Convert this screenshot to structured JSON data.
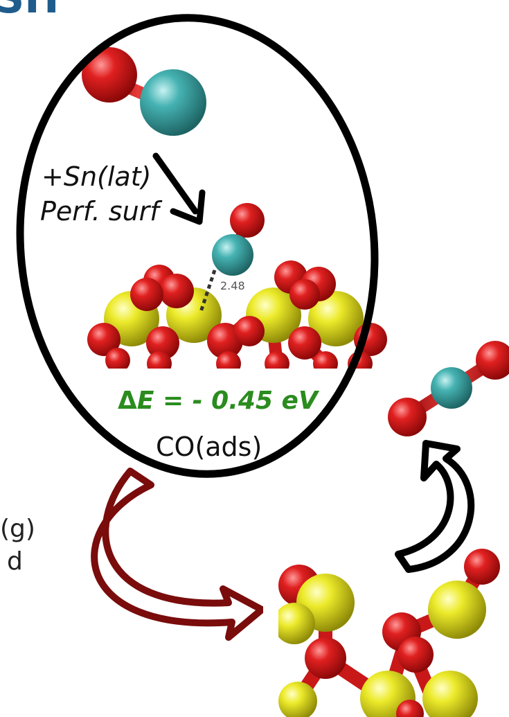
{
  "header": {
    "title_fragment": "SH"
  },
  "labels": {
    "reaction_line1": "+Sn(lat)",
    "reaction_line2": "Perf. surf",
    "bond_distance": "2.48",
    "energy_symbol": "Δ",
    "energy_E": "E",
    "energy_value": " = - 0.45 eV",
    "state": "CO(ads)",
    "side_text_1": "(g)",
    "side_text_2": "d"
  },
  "colors": {
    "oxygen": "#d21a1a",
    "carbon": "#3aa6a6",
    "tin": "#e5e020",
    "energy": "#2a8c1e",
    "arrow_outline": "#7a0c0c",
    "title": "#1f5c8c"
  }
}
